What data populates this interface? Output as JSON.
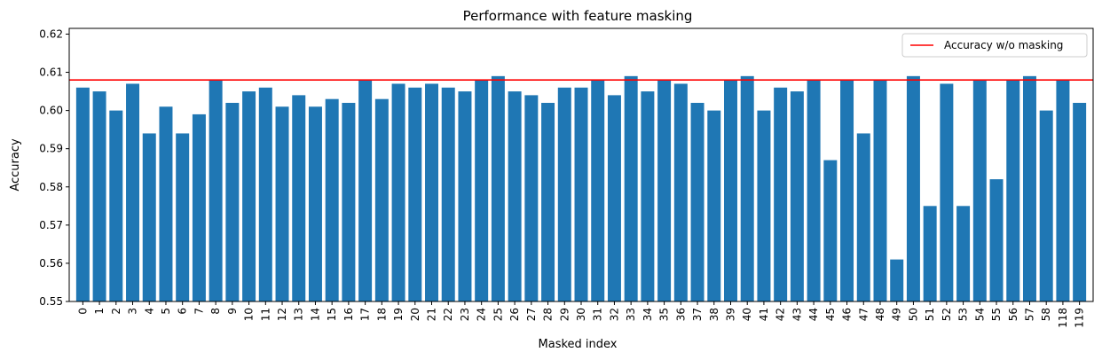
{
  "chart_data": {
    "type": "bar",
    "title": "Performance with feature masking",
    "xlabel": "Masked index",
    "ylabel": "Accuracy",
    "ylim": [
      0.55,
      0.6215
    ],
    "yticks": [
      "0.55",
      "0.56",
      "0.57",
      "0.58",
      "0.59",
      "0.60",
      "0.61",
      "0.62"
    ],
    "grid": false,
    "legend_position": "top-right",
    "categories": [
      "0",
      "1",
      "2",
      "3",
      "4",
      "5",
      "6",
      "7",
      "8",
      "9",
      "10",
      "11",
      "12",
      "13",
      "14",
      "15",
      "16",
      "17",
      "18",
      "19",
      "20",
      "21",
      "22",
      "23",
      "24",
      "25",
      "26",
      "27",
      "28",
      "29",
      "30",
      "31",
      "32",
      "33",
      "34",
      "35",
      "36",
      "37",
      "38",
      "39",
      "40",
      "41",
      "42",
      "43",
      "44",
      "45",
      "46",
      "47",
      "48",
      "49",
      "50",
      "51",
      "52",
      "53",
      "54",
      "55",
      "56",
      "57",
      "58",
      "118",
      "119"
    ],
    "series": [
      {
        "values": [
          0.606,
          0.605,
          0.6,
          0.607,
          0.594,
          0.601,
          0.594,
          0.599,
          0.608,
          0.602,
          0.605,
          0.606,
          0.601,
          0.604,
          0.601,
          0.603,
          0.602,
          0.608,
          0.603,
          0.607,
          0.606,
          0.607,
          0.606,
          0.605,
          0.608,
          0.609,
          0.605,
          0.604,
          0.602,
          0.606,
          0.606,
          0.608,
          0.604,
          0.609,
          0.605,
          0.608,
          0.607,
          0.602,
          0.6,
          0.608,
          0.609,
          0.6,
          0.606,
          0.605,
          0.608,
          0.587,
          0.608,
          0.594,
          0.608,
          0.561,
          0.609,
          0.575,
          0.607,
          0.575,
          0.608,
          0.582,
          0.608,
          0.609,
          0.6,
          0.608,
          0.602
        ],
        "color": "#1f77b4"
      }
    ],
    "reference_line": {
      "name": "Accuracy w/o masking",
      "value": 0.608,
      "color": "#ff0000"
    }
  }
}
